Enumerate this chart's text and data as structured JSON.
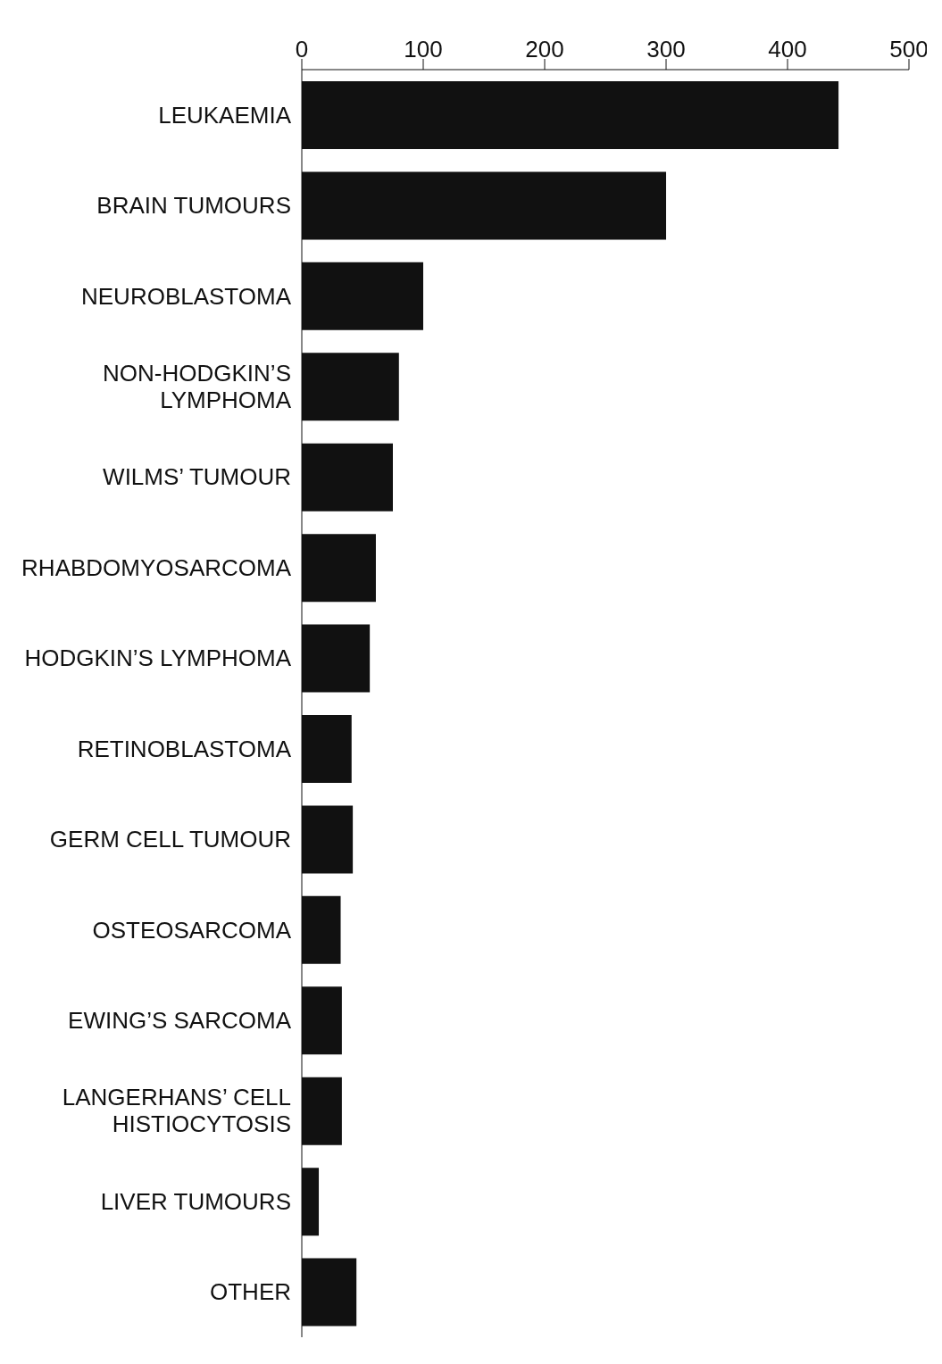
{
  "chart_data": {
    "type": "bar",
    "orientation": "horizontal",
    "categories": [
      "LEUKAEMIA",
      "BRAIN TUMOURS",
      "NEUROBLASTOMA",
      "NON-HODGKIN’S LYMPHOMA",
      "WILMS’ TUMOUR",
      "RHABDOMYOSARCOMA",
      "HODGKIN’S LYMPHOMA",
      "RETINOBLASTOMA",
      "GERM CELL TUMOUR",
      "OSTEOSARCOMA",
      "EWING’S SARCOMA",
      "LANGERHANS’ CELL HISTIOCYTOSIS",
      "LIVER TUMOURS",
      "OTHER"
    ],
    "values": [
      442,
      300,
      100,
      80,
      75,
      61,
      56,
      41,
      42,
      32,
      33,
      33,
      14,
      45
    ],
    "color": "#111111",
    "xlim": [
      0,
      500
    ],
    "xticks": [
      0,
      100,
      200,
      300,
      400,
      500
    ]
  }
}
